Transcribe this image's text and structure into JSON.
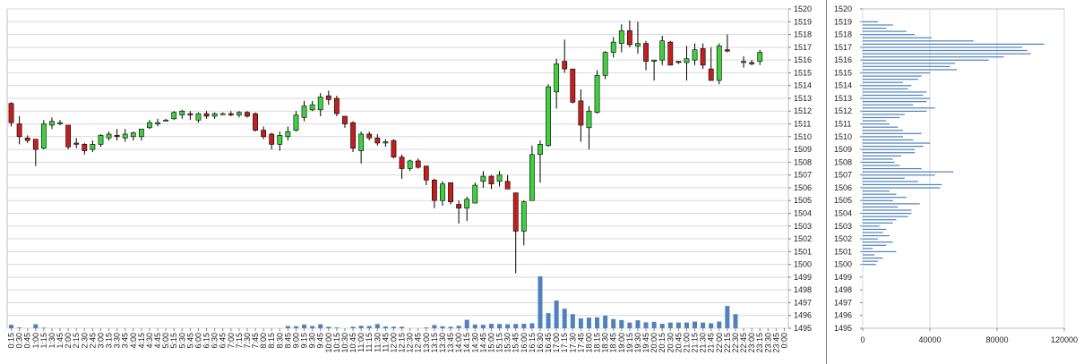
{
  "colors": {
    "up": "#3fcf3f",
    "down": "#c21f1f",
    "volume": "#4f81bd",
    "profile": "#4f81bd",
    "grid": "#d9d9d9",
    "divider": "#808080"
  },
  "chart_data": [
    {
      "type": "candlestick",
      "title": "",
      "ylim": [
        1495,
        1520
      ],
      "grid": true,
      "y_ticks": [
        "1495",
        "1496",
        "1497",
        "1498",
        "1499",
        "1500",
        "1501",
        "1502",
        "1503",
        "1504",
        "1505",
        "1506",
        "1507",
        "1508",
        "1509",
        "1510",
        "1511",
        "1512",
        "1513",
        "1514",
        "1515",
        "1516",
        "1517",
        "1518",
        "1519",
        "1520"
      ],
      "x_ticks": [
        "0:15",
        "0:30",
        "0:45",
        "1:00",
        "1:15",
        "1:30",
        "1:45",
        "2:00",
        "2:15",
        "2:30",
        "2:45",
        "3:00",
        "3:15",
        "3:30",
        "3:45",
        "4:00",
        "4:15",
        "4:30",
        "4:45",
        "5:00",
        "5:15",
        "5:30",
        "5:45",
        "6:00",
        "6:15",
        "6:30",
        "6:45",
        "7:00",
        "7:15",
        "7:30",
        "7:45",
        "8:00",
        "8:15",
        "8:30",
        "8:45",
        "9:00",
        "9:15",
        "9:30",
        "9:45",
        "10:00",
        "10:15",
        "10:30",
        "10:45",
        "11:00",
        "11:15",
        "11:30",
        "11:45",
        "12:00",
        "12:15",
        "12:30",
        "12:45",
        "13:00",
        "13:15",
        "13:30",
        "13:45",
        "14:00",
        "14:15",
        "14:30",
        "14:45",
        "15:00",
        "15:15",
        "15:30",
        "15:45",
        "16:00",
        "16:15",
        "16:30",
        "16:45",
        "17:00",
        "17:15",
        "17:30",
        "17:45",
        "18:00",
        "18:15",
        "18:30",
        "18:45",
        "19:00",
        "19:15",
        "19:30",
        "19:45",
        "20:00",
        "20:15",
        "20:30",
        "20:45",
        "21:00",
        "21:15",
        "21:30",
        "21:45",
        "22:00",
        "22:15",
        "22:30",
        "22:45",
        "23:00",
        "23:15",
        "23:30",
        "23:45",
        "0:00"
      ],
      "candles": [
        [
          1512.6,
          1512.7,
          1510.8,
          1511.1
        ],
        [
          1511.0,
          1511.6,
          1509.4,
          1510.0
        ],
        [
          1509.9,
          1510.1,
          1509.5,
          1509.7
        ],
        [
          1509.8,
          1509.8,
          1507.7,
          1509.0
        ],
        [
          1509.1,
          1511.3,
          1509.0,
          1511.0
        ],
        [
          1510.9,
          1511.5,
          1510.6,
          1511.2
        ],
        [
          1511.0,
          1511.3,
          1510.9,
          1511.1
        ],
        [
          1510.9,
          1510.9,
          1509.0,
          1509.2
        ],
        [
          1509.5,
          1509.9,
          1509.1,
          1509.4
        ],
        [
          1509.4,
          1509.5,
          1508.6,
          1508.9
        ],
        [
          1509.0,
          1509.7,
          1508.8,
          1509.4
        ],
        [
          1509.4,
          1510.2,
          1509.2,
          1510.1
        ],
        [
          1509.9,
          1510.4,
          1509.7,
          1510.2
        ],
        [
          1510.1,
          1510.6,
          1509.7,
          1510.0
        ],
        [
          1509.9,
          1510.6,
          1509.6,
          1510.2
        ],
        [
          1510.0,
          1510.4,
          1509.7,
          1510.3
        ],
        [
          1510.0,
          1510.6,
          1509.7,
          1510.6
        ],
        [
          1510.7,
          1511.3,
          1510.6,
          1511.1
        ],
        [
          1511.0,
          1511.4,
          1510.8,
          1511.1
        ],
        [
          1511.3,
          1511.4,
          1511.2,
          1511.3
        ],
        [
          1511.4,
          1512.0,
          1511.3,
          1511.9
        ],
        [
          1511.7,
          1512.1,
          1511.4,
          1512.0
        ],
        [
          1511.8,
          1512.0,
          1511.3,
          1511.7
        ],
        [
          1511.3,
          1511.9,
          1511.1,
          1511.8
        ],
        [
          1511.8,
          1512.0,
          1511.4,
          1511.6
        ],
        [
          1511.6,
          1511.9,
          1511.4,
          1511.8
        ],
        [
          1511.8,
          1511.9,
          1511.7,
          1511.8
        ],
        [
          1511.8,
          1512.0,
          1511.6,
          1511.7
        ],
        [
          1511.7,
          1512.0,
          1511.5,
          1511.9
        ],
        [
          1511.9,
          1512.0,
          1511.5,
          1511.6
        ],
        [
          1511.8,
          1511.9,
          1510.4,
          1510.5
        ],
        [
          1510.5,
          1510.8,
          1509.8,
          1510.0
        ],
        [
          1510.2,
          1510.3,
          1509.0,
          1509.4
        ],
        [
          1509.4,
          1510.4,
          1508.9,
          1510.1
        ],
        [
          1510.0,
          1510.8,
          1509.7,
          1510.4
        ],
        [
          1510.5,
          1512.0,
          1510.4,
          1511.7
        ],
        [
          1511.5,
          1512.8,
          1511.2,
          1512.4
        ],
        [
          1512.1,
          1512.8,
          1512.0,
          1512.5
        ],
        [
          1512.1,
          1513.4,
          1511.6,
          1513.1
        ],
        [
          1513.2,
          1513.6,
          1512.5,
          1512.9
        ],
        [
          1513.0,
          1513.2,
          1511.6,
          1511.8
        ],
        [
          1511.6,
          1511.6,
          1510.7,
          1511.0
        ],
        [
          1511.1,
          1511.2,
          1508.8,
          1509.1
        ],
        [
          1508.9,
          1510.4,
          1507.9,
          1510.2
        ],
        [
          1510.2,
          1510.4,
          1509.7,
          1509.9
        ],
        [
          1509.9,
          1510.2,
          1509.3,
          1509.5
        ],
        [
          1509.5,
          1509.8,
          1509.2,
          1509.6
        ],
        [
          1509.7,
          1509.8,
          1508.3,
          1508.4
        ],
        [
          1508.4,
          1508.6,
          1506.7,
          1507.5
        ],
        [
          1507.5,
          1508.2,
          1507.3,
          1508.1
        ],
        [
          1508.1,
          1508.3,
          1507.5,
          1507.6
        ],
        [
          1507.7,
          1507.7,
          1506.2,
          1506.6
        ],
        [
          1506.6,
          1506.7,
          1504.4,
          1505.0
        ],
        [
          1505.0,
          1506.5,
          1504.6,
          1506.3
        ],
        [
          1506.4,
          1506.4,
          1504.7,
          1504.9
        ],
        [
          1504.7,
          1505.0,
          1503.2,
          1504.4
        ],
        [
          1504.4,
          1505.3,
          1503.4,
          1505.1
        ],
        [
          1504.8,
          1506.4,
          1504.8,
          1506.2
        ],
        [
          1506.5,
          1507.3,
          1506.0,
          1506.9
        ],
        [
          1506.9,
          1507.0,
          1505.9,
          1506.3
        ],
        [
          1506.5,
          1507.3,
          1506.1,
          1507.0
        ],
        [
          1506.5,
          1507.0,
          1505.9,
          1505.9
        ],
        [
          1505.6,
          1505.6,
          1499.3,
          1502.6
        ],
        [
          1502.6,
          1505.0,
          1501.5,
          1504.9
        ],
        [
          1505.0,
          1509.3,
          1505.0,
          1508.6
        ],
        [
          1508.6,
          1509.7,
          1506.4,
          1509.4
        ],
        [
          1509.3,
          1514.1,
          1509.2,
          1513.9
        ],
        [
          1513.5,
          1516.1,
          1512.2,
          1515.7
        ],
        [
          1515.9,
          1517.6,
          1515.0,
          1515.3
        ],
        [
          1515.3,
          1515.3,
          1512.6,
          1512.7
        ],
        [
          1512.8,
          1513.7,
          1509.6,
          1510.9
        ],
        [
          1510.7,
          1512.4,
          1509.0,
          1512.0
        ],
        [
          1511.9,
          1515.2,
          1511.8,
          1514.8
        ],
        [
          1514.8,
          1516.7,
          1514.5,
          1516.6
        ],
        [
          1516.6,
          1517.8,
          1516.2,
          1517.4
        ],
        [
          1517.3,
          1518.8,
          1516.6,
          1518.3
        ],
        [
          1518.3,
          1519.1,
          1517.0,
          1517.2
        ],
        [
          1517.1,
          1519.0,
          1516.5,
          1517.3
        ],
        [
          1517.3,
          1517.5,
          1515.2,
          1515.9
        ],
        [
          1515.9,
          1516.0,
          1514.4,
          1516.0
        ],
        [
          1516.0,
          1517.9,
          1515.6,
          1517.5
        ],
        [
          1517.4,
          1517.5,
          1515.6,
          1515.6
        ],
        [
          1515.9,
          1515.9,
          1515.7,
          1515.8
        ],
        [
          1515.8,
          1517.1,
          1514.4,
          1516.1
        ],
        [
          1516.0,
          1517.3,
          1515.6,
          1516.8
        ],
        [
          1516.9,
          1517.3,
          1515.3,
          1515.6
        ],
        [
          1515.3,
          1517.0,
          1514.4,
          1514.4
        ],
        [
          1514.4,
          1517.3,
          1514.1,
          1517.1
        ],
        [
          1516.8,
          1518.0,
          1516.6,
          1516.7
        ],
        null,
        [
          1515.8,
          1516.3,
          1515.4,
          1515.9
        ],
        [
          1515.8,
          1516.0,
          1515.6,
          1515.7
        ],
        [
          1515.9,
          1516.8,
          1515.6,
          1516.6
        ],
        null,
        null,
        null
      ],
      "volume": [
        1400,
        300,
        0,
        1600,
        200,
        0,
        0,
        0,
        0,
        0,
        0,
        0,
        0,
        0,
        0,
        0,
        0,
        0,
        0,
        0,
        0,
        0,
        0,
        0,
        0,
        0,
        0,
        0,
        0,
        0,
        0,
        0,
        0,
        0,
        900,
        800,
        1500,
        900,
        1600,
        600,
        300,
        0,
        600,
        1000,
        900,
        1700,
        700,
        600,
        600,
        0,
        0,
        300,
        1300,
        800,
        600,
        1000,
        3400,
        1500,
        1400,
        1800,
        1700,
        1600,
        1700,
        1800,
        2000,
        21000,
        6100,
        11200,
        7900,
        5700,
        4000,
        4300,
        4400,
        5100,
        3700,
        3300,
        2300,
        3200,
        2400,
        2600,
        1800,
        2300,
        2300,
        2300,
        2700,
        2300,
        2000,
        2700,
        9000,
        5700,
        0,
        0,
        0,
        0,
        0,
        0
      ]
    },
    {
      "type": "bar",
      "orientation": "horizontal",
      "title": "",
      "xlim": [
        0,
        120000
      ],
      "ylim": [
        1495,
        1520
      ],
      "grid": true,
      "x_ticks": [
        "0",
        "40000",
        "80000",
        "120000"
      ],
      "y_ticks": [
        "1495",
        "1496",
        "1497",
        "1498",
        "1499",
        "1500",
        "1501",
        "1502",
        "1503",
        "1504",
        "1505",
        "1506",
        "1507",
        "1508",
        "1509",
        "1510",
        "1511",
        "1512",
        "1513",
        "1514",
        "1515",
        "1516",
        "1517",
        "1518",
        "1519",
        "1520"
      ],
      "price": [
        1500.0,
        1500.25,
        1500.5,
        1500.75,
        1501.0,
        1501.25,
        1501.5,
        1501.75,
        1502.0,
        1502.25,
        1502.5,
        1502.75,
        1503.0,
        1503.25,
        1503.5,
        1503.75,
        1504.0,
        1504.25,
        1504.5,
        1504.75,
        1505.0,
        1505.25,
        1505.5,
        1505.75,
        1506.0,
        1506.25,
        1506.5,
        1506.75,
        1507.0,
        1507.25,
        1507.5,
        1507.75,
        1508.0,
        1508.25,
        1508.5,
        1508.75,
        1509.0,
        1509.25,
        1509.5,
        1509.75,
        1510.0,
        1510.25,
        1510.5,
        1510.75,
        1511.0,
        1511.25,
        1511.5,
        1511.75,
        1512.0,
        1512.25,
        1512.5,
        1512.75,
        1513.0,
        1513.25,
        1513.5,
        1513.75,
        1514.0,
        1514.25,
        1514.5,
        1514.75,
        1515.0,
        1515.25,
        1515.5,
        1515.75,
        1516.0,
        1516.25,
        1516.5,
        1516.75,
        1517.0,
        1517.25,
        1517.5,
        1517.75,
        1518.0,
        1518.25,
        1518.5,
        1518.75,
        1519.0
      ],
      "values": [
        8000,
        9000,
        12000,
        7000,
        20000,
        6000,
        14000,
        18000,
        9000,
        16000,
        12000,
        14000,
        10000,
        18000,
        20000,
        27000,
        29000,
        29000,
        21000,
        34000,
        18000,
        26000,
        20000,
        16000,
        46000,
        47000,
        33000,
        25000,
        43000,
        54000,
        35000,
        22000,
        19000,
        18000,
        23000,
        31000,
        31000,
        36000,
        40000,
        30000,
        24000,
        35000,
        24000,
        21000,
        16000,
        14000,
        22000,
        25000,
        38000,
        43000,
        30000,
        38000,
        40000,
        36000,
        38000,
        27000,
        29000,
        24000,
        33000,
        35000,
        40000,
        56000,
        52000,
        55000,
        75000,
        84000,
        100000,
        98000,
        95000,
        108000,
        66000,
        41000,
        31000,
        26000,
        14000,
        18000,
        9000
      ]
    }
  ]
}
